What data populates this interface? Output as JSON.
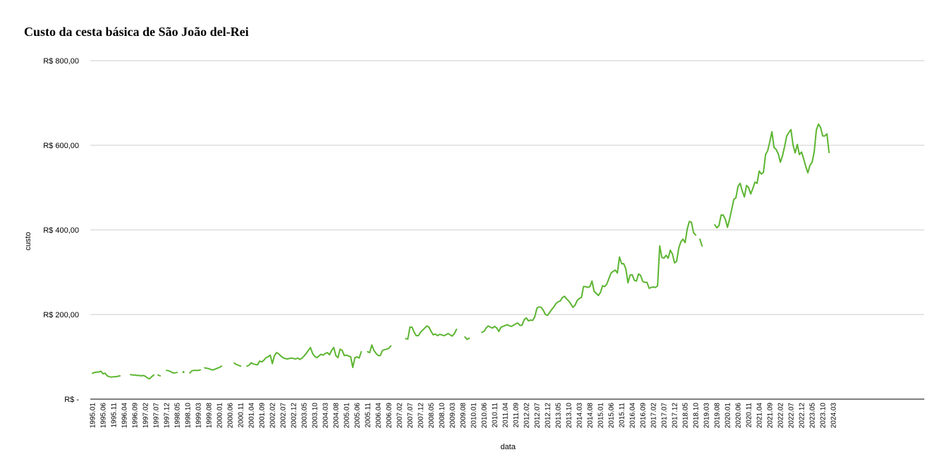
{
  "chart_data": {
    "type": "line",
    "title": "Custo da cesta básica de São João del-Rei",
    "xlabel": "data",
    "ylabel": "custo",
    "ylim": [
      0,
      800
    ],
    "grid": true,
    "legend": "none",
    "series_color": "#5cb531",
    "gridline_color": "#cccccc",
    "yticks": [
      {
        "value": 0,
        "label": "R$ -"
      },
      {
        "value": 200,
        "label": "R$ 200,00"
      },
      {
        "value": 400,
        "label": "R$ 400,00"
      },
      {
        "value": 600,
        "label": "R$ 600,00"
      },
      {
        "value": 800,
        "label": "R$ 800,00"
      }
    ],
    "xtick_labels": [
      "1995.01",
      "1995.06",
      "1995.11",
      "1996.04",
      "1996.09",
      "1997.02",
      "1997.07",
      "1997.12",
      "1998.05",
      "1998.10",
      "1999.03",
      "1999.08",
      "2000.01",
      "2000.06",
      "2000.11",
      "2001.04",
      "2001.09",
      "2002.02",
      "2002.07",
      "2002.12",
      "2003.05",
      "2003.10",
      "2004.03",
      "2004.08",
      "2005.01",
      "2005.06",
      "2005.11",
      "2006.04",
      "2006.09",
      "2007.02",
      "2007.07",
      "2007.12",
      "2008.05",
      "2008.10",
      "2009.03",
      "2009.08",
      "2010.01",
      "2010.06",
      "2010.11",
      "2011.04",
      "2011.09",
      "2012.02",
      "2012.07",
      "2012.12",
      "2013.05",
      "2013.10",
      "2014.03",
      "2014.08",
      "2015.01",
      "2015.06",
      "2015.11",
      "2016.04",
      "2016.09",
      "2017.02",
      "2017.07",
      "2017.12",
      "2018.05",
      "2018.10",
      "2019.03",
      "2019.08",
      "2020.01",
      "2020.06",
      "2020.11",
      "2021.04",
      "2021.09",
      "2022.02",
      "2022.07",
      "2022.12",
      "2023.05",
      "2023.10",
      "2024.03"
    ],
    "series": [
      {
        "values": [
          61,
          63,
          64,
          64,
          66,
          60,
          61,
          55,
          53,
          52,
          53,
          53,
          54,
          55,
          null,
          null,
          null,
          null,
          58,
          57,
          57,
          56,
          56,
          55,
          56,
          54,
          50,
          48,
          53,
          57,
          null,
          57,
          55,
          null,
          null,
          68,
          67,
          65,
          62,
          62,
          63,
          null,
          null,
          64,
          null,
          null,
          62,
          67,
          68,
          68,
          68,
          69,
          null,
          74,
          73,
          72,
          70,
          69,
          71,
          73,
          75,
          78,
          null,
          null,
          null,
          null,
          null,
          85,
          82,
          80,
          78,
          null,
          null,
          78,
          80,
          86,
          83,
          82,
          81,
          90,
          88,
          92,
          98,
          100,
          104,
          84,
          103,
          110,
          107,
          102,
          98,
          96,
          95,
          96,
          97,
          96,
          95,
          97,
          94,
          97,
          102,
          108,
          115,
          122,
          108,
          101,
          98,
          102,
          106,
          104,
          108,
          110,
          105,
          115,
          122,
          103,
          98,
          118,
          115,
          103,
          104,
          102,
          100,
          75,
          98,
          100,
          97,
          112,
          null,
          null,
          112,
          110,
          128,
          115,
          108,
          103,
          103,
          115,
          117,
          118,
          120,
          126,
          null,
          null,
          null,
          null,
          null,
          null,
          143,
          142,
          170,
          170,
          158,
          150,
          150,
          158,
          163,
          168,
          173,
          170,
          160,
          152,
          154,
          150,
          153,
          152,
          150,
          152,
          155,
          152,
          149,
          155,
          165,
          null,
          null,
          null,
          147,
          141,
          144,
          null,
          null,
          null,
          null,
          null,
          158,
          160,
          168,
          173,
          170,
          168,
          172,
          168,
          160,
          170,
          172,
          174,
          176,
          173,
          172,
          175,
          178,
          180,
          174,
          175,
          188,
          192,
          185,
          187,
          186,
          195,
          215,
          218,
          217,
          210,
          200,
          198,
          205,
          212,
          218,
          226,
          230,
          232,
          240,
          243,
          237,
          232,
          225,
          217,
          222,
          233,
          238,
          240,
          266,
          266,
          264,
          266,
          279,
          255,
          250,
          245,
          252,
          268,
          266,
          272,
          285,
          298,
          302,
          305,
          298,
          336,
          320,
          320,
          308,
          275,
          293,
          294,
          281,
          279,
          296,
          292,
          278,
          276,
          276,
          262,
          264,
          265,
          264,
          268,
          362,
          335,
          333,
          340,
          333,
          352,
          343,
          322,
          326,
          357,
          372,
          378,
          370,
          402,
          420,
          418,
          393,
          388,
          null,
          378,
          362,
          null,
          null,
          null,
          null,
          null,
          412,
          405,
          410,
          435,
          435,
          425,
          406,
          425,
          448,
          472,
          476,
          503,
          510,
          492,
          478,
          505,
          500,
          485,
          498,
          513,
          510,
          539,
          532,
          536,
          578,
          587,
          608,
          632,
          595,
          590,
          580,
          560,
          575,
          597,
          622,
          630,
          637,
          600,
          582,
          602,
          578,
          584,
          568,
          550,
          535,
          553,
          560,
          585,
          636,
          650,
          642,
          622,
          622,
          627,
          583
        ]
      }
    ]
  }
}
